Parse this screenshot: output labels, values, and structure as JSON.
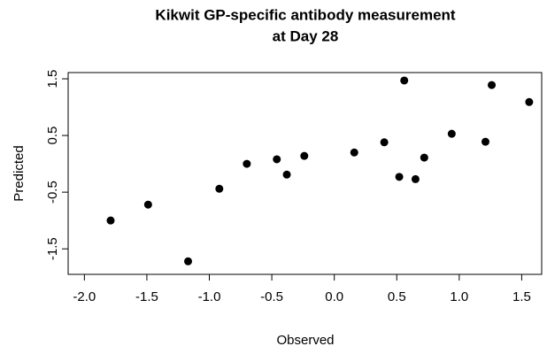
{
  "chart_data": {
    "type": "scatter",
    "title": [
      "Kikwit GP-specific antibody measurement",
      "at Day 28"
    ],
    "xlabel": "Observed",
    "ylabel": "Predicted",
    "x": [
      -1.79,
      -1.49,
      -1.17,
      -0.92,
      -0.7,
      -0.46,
      -0.38,
      -0.24,
      0.16,
      0.4,
      0.52,
      0.56,
      0.65,
      0.72,
      0.94,
      1.21,
      1.26,
      1.56
    ],
    "y": [
      -1.0,
      -0.72,
      -1.72,
      -0.44,
      0.0,
      0.08,
      -0.19,
      0.14,
      0.2,
      0.38,
      -0.23,
      1.47,
      -0.27,
      0.11,
      0.53,
      0.39,
      1.39,
      1.09
    ],
    "color": "#000000",
    "xlim": [
      -2.13,
      1.66
    ],
    "ylim": [
      -1.95,
      1.61
    ],
    "xticks": [
      {
        "value": -2.0,
        "label": "-2.0"
      },
      {
        "value": -1.5,
        "label": "-1.5"
      },
      {
        "value": -1.0,
        "label": "-1.0"
      },
      {
        "value": -0.5,
        "label": "-0.5"
      },
      {
        "value": 0.0,
        "label": "0.0"
      },
      {
        "value": 0.5,
        "label": "0.5"
      },
      {
        "value": 1.0,
        "label": "1.0"
      },
      {
        "value": 1.5,
        "label": "1.5"
      }
    ],
    "yticks": [
      -1.5,
      -0.5,
      0.5,
      1.5
    ],
    "grid": false
  }
}
